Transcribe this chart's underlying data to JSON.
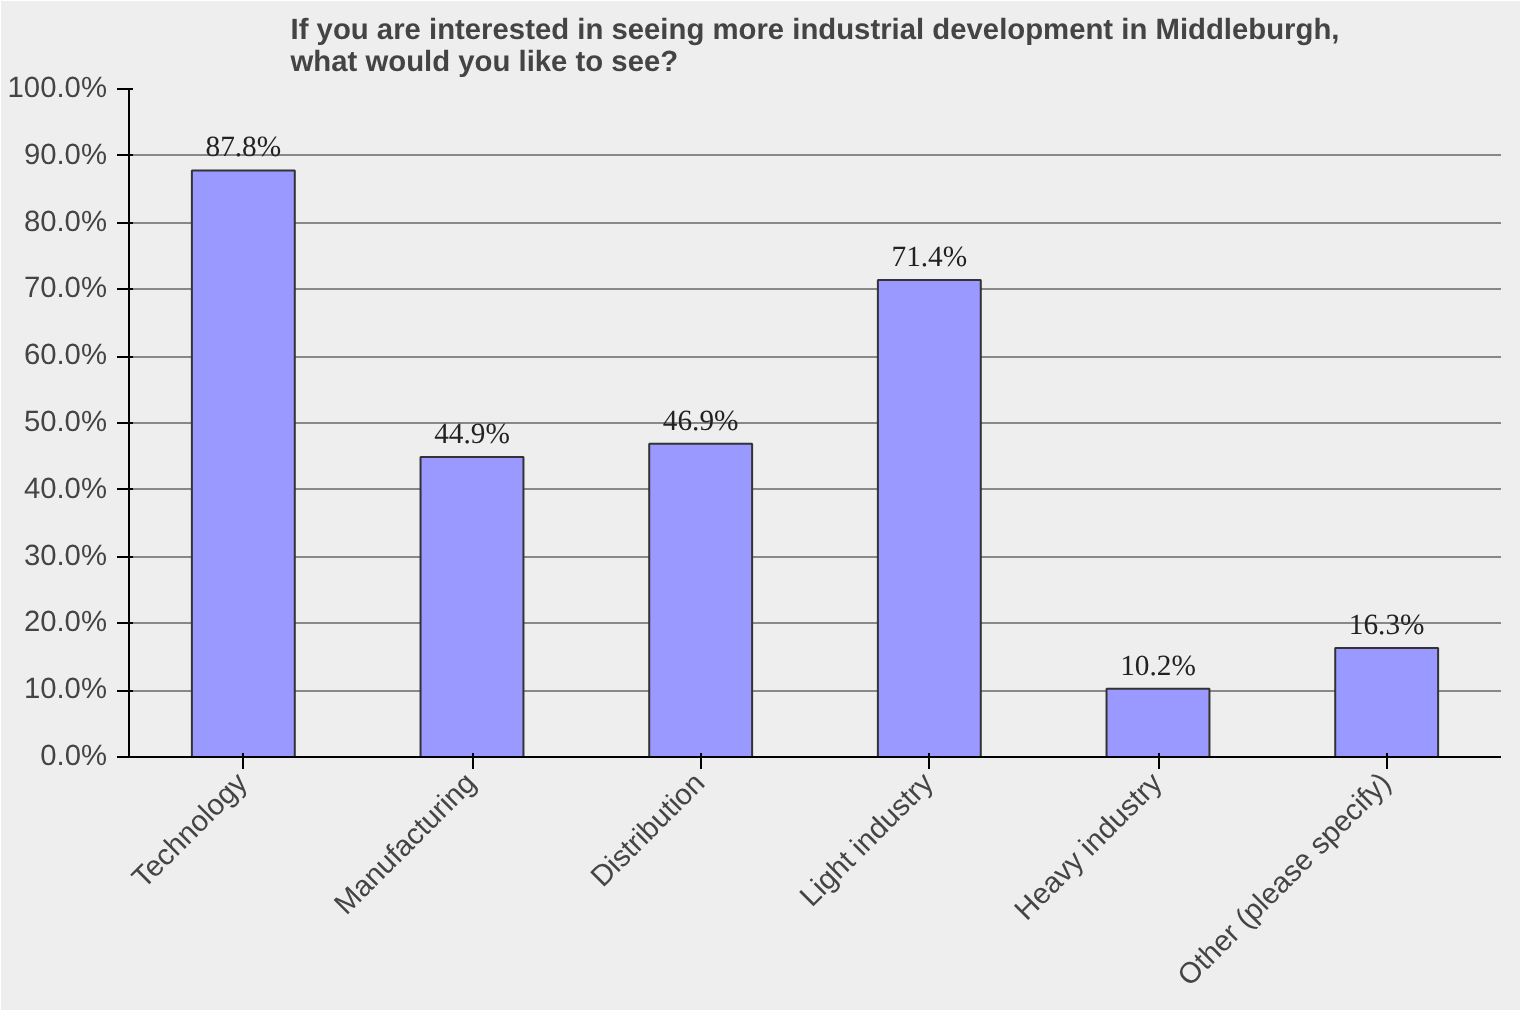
{
  "chart_data": {
    "type": "bar",
    "title": "If you are interested in seeing more industrial development in Middleburgh,\nwhat would you like to see?",
    "categories": [
      "Technology",
      "Manufacturing",
      "Distribution",
      "Light industry",
      "Heavy industry",
      "Other (please specify)"
    ],
    "values": [
      87.8,
      44.9,
      46.9,
      71.4,
      10.2,
      16.3
    ],
    "value_labels": [
      "87.8%",
      "44.9%",
      "46.9%",
      "71.4%",
      "10.2%",
      "16.3%"
    ],
    "color": "#9999ff",
    "ylim": [
      0,
      100
    ],
    "yticks": [
      {
        "value": 0,
        "label": "0.0%"
      },
      {
        "value": 10,
        "label": "10.0%"
      },
      {
        "value": 20,
        "label": "20.0%"
      },
      {
        "value": 30,
        "label": "30.0%"
      },
      {
        "value": 40,
        "label": "40.0%"
      },
      {
        "value": 50,
        "label": "50.0%"
      },
      {
        "value": 60,
        "label": "60.0%"
      },
      {
        "value": 70,
        "label": "70.0%"
      },
      {
        "value": 80,
        "label": "80.0%"
      },
      {
        "value": 90,
        "label": "90.0%"
      },
      {
        "value": 100,
        "label": "100.0%"
      }
    ],
    "grid": "y"
  }
}
